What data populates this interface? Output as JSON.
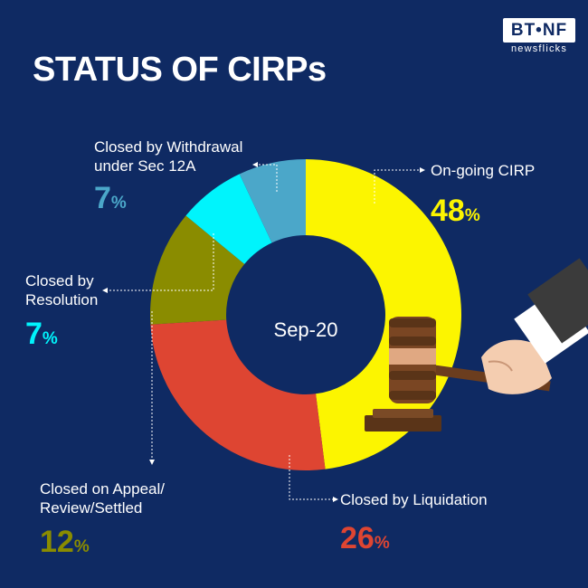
{
  "header": {
    "title": "STATUS OF CIRPs",
    "logo_main": "BT•NF",
    "logo_sub": "newsflicks"
  },
  "chart_data": {
    "type": "pie",
    "center_label": "Sep-20",
    "slices": [
      {
        "name": "On-going CIRP",
        "value": 48,
        "label": "48",
        "color": "#fcf500"
      },
      {
        "name": "Closed by Liquidation",
        "value": 26,
        "label": "26",
        "color": "#de4532"
      },
      {
        "name": "Closed on Appeal/ Review/Settled",
        "value": 12,
        "label": "12",
        "color": "#8a8c00"
      },
      {
        "name": "Closed by Resolution",
        "value": 7,
        "label": "7",
        "color": "#00f4fc"
      },
      {
        "name": "Closed by Withdrawal under Sec 12A",
        "value": 7,
        "label": "7",
        "color": "#4ba7c9"
      }
    ],
    "percent_symbol": "%",
    "labels": {
      "ongoing": {
        "line1": "On-going CIRP",
        "line2": ""
      },
      "liquidation": {
        "line1": "Closed by Liquidation",
        "line2": ""
      },
      "appeal": {
        "line1": "Closed on Appeal/",
        "line2": "Review/Settled"
      },
      "resolution": {
        "line1": "Closed by",
        "line2": "Resolution"
      },
      "withdrawal": {
        "line1": "Closed by Withdrawal",
        "line2": "under Sec 12A"
      }
    }
  }
}
